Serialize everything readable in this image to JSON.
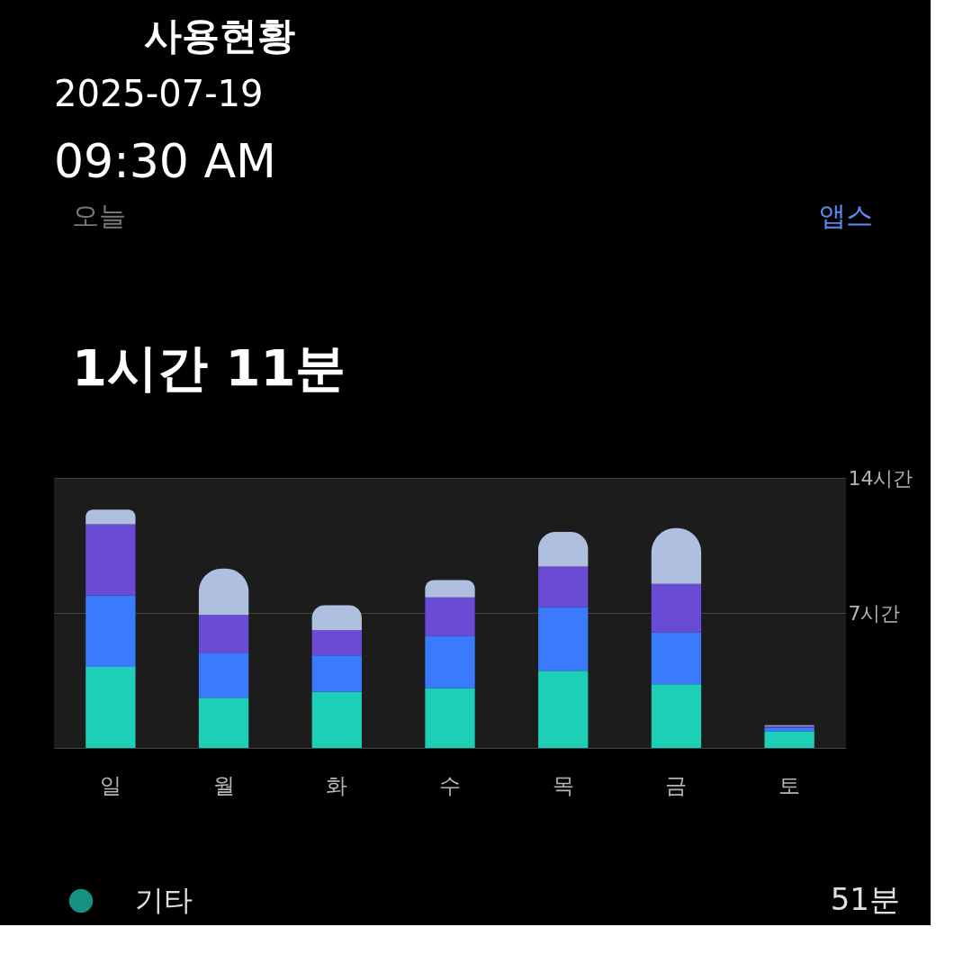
{
  "chart_data": {
    "type": "bar",
    "stacked": true,
    "title": "사용현황",
    "subtitle": "1시간 11분",
    "annotations": [
      "2025-07-19",
      "09:30 AM",
      "오늘",
      "앱스",
      "51분"
    ],
    "categories": [
      "일",
      "월",
      "화",
      "수",
      "목",
      "금",
      "토"
    ],
    "series": [
      {
        "name": "기타",
        "color": "#1ecfb8",
        "values": [
          4.2,
          2.6,
          2.9,
          3.1,
          4.0,
          3.3,
          0.85
        ]
      },
      {
        "color": "#3a7bfd",
        "values": [
          3.7,
          2.3,
          1.9,
          2.7,
          3.3,
          2.7,
          0.2
        ]
      },
      {
        "color": "#6a4bd6",
        "values": [
          3.7,
          2.0,
          1.3,
          2.0,
          2.1,
          2.5,
          0.08
        ]
      },
      {
        "color": "#aebfdf",
        "values": [
          0.75,
          2.4,
          1.3,
          0.9,
          1.8,
          2.9,
          0.05
        ]
      }
    ],
    "ylim": [
      0,
      14
    ],
    "yticks": [
      {
        "value": 0,
        "label": null
      },
      {
        "value": 7,
        "label": "7시간"
      },
      {
        "value": 14,
        "label": "14시간"
      }
    ],
    "grid": "y",
    "legend": "bottom"
  }
}
